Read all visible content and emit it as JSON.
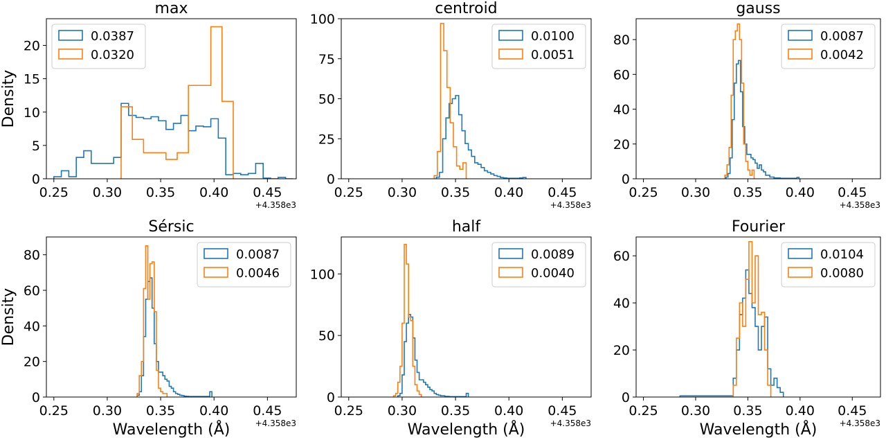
{
  "figure": {
    "colors": {
      "series1": "#1f77b4",
      "series2": "#ff7f0e",
      "axis": "#000000",
      "background": "#ffffff"
    }
  },
  "chart_data": [
    {
      "type": "histogram-step",
      "title": "max",
      "ylabel": "Density",
      "xlabel": "",
      "offset_label": "+4.358e3",
      "xlim": [
        0.243,
        0.477
      ],
      "ylim": [
        0,
        24
      ],
      "xticks": [
        0.25,
        0.3,
        0.35,
        0.4,
        0.45
      ],
      "xtick_labels": [
        "0.25",
        "0.30",
        "0.35",
        "0.40",
        "0.45"
      ],
      "yticks": [
        0,
        5,
        10,
        15,
        20
      ],
      "ytick_labels": [
        "0",
        "5",
        "10",
        "15",
        "20"
      ],
      "legend_position": "top-left",
      "series": [
        {
          "name": "0.0387",
          "color": "#1f77b4",
          "edges": [
            0.25,
            0.257,
            0.264,
            0.271,
            0.278,
            0.285,
            0.292,
            0.299,
            0.306,
            0.313,
            0.32,
            0.327,
            0.334,
            0.341,
            0.348,
            0.355,
            0.362,
            0.369,
            0.376,
            0.383,
            0.39,
            0.397,
            0.404,
            0.411,
            0.418,
            0.425,
            0.432,
            0.439,
            0.446,
            0.453,
            0.46,
            0.467,
            0.474
          ],
          "values": [
            0.3,
            1.2,
            0.3,
            3.2,
            4.2,
            2.3,
            2.3,
            2.3,
            3.2,
            11.3,
            9.5,
            9.2,
            9.0,
            9.3,
            8.7,
            7.4,
            8.3,
            9.5,
            7.2,
            7.9,
            7.8,
            9.0,
            6.1,
            0.6,
            0.8,
            0.6,
            0.8,
            2.3,
            0.1,
            0.0,
            0.2,
            0.0
          ]
        },
        {
          "name": "0.0320",
          "color": "#ff7f0e",
          "edges": [
            0.313,
            0.3235,
            0.334,
            0.3445,
            0.355,
            0.3655,
            0.376,
            0.3865,
            0.397,
            0.4075,
            0.418
          ],
          "values": [
            10.8,
            5.9,
            3.9,
            3.9,
            2.9,
            3.9,
            14.0,
            14.0,
            22.8,
            11.6
          ]
        }
      ]
    },
    {
      "type": "histogram-step",
      "title": "centroid",
      "ylabel": "",
      "xlabel": "",
      "offset_label": "+4.358e3",
      "xlim": [
        0.243,
        0.477
      ],
      "ylim": [
        0,
        100
      ],
      "xticks": [
        0.25,
        0.3,
        0.35,
        0.4,
        0.45
      ],
      "xtick_labels": [
        "0.25",
        "0.30",
        "0.35",
        "0.40",
        "0.45"
      ],
      "yticks": [
        0,
        25,
        50,
        75,
        100
      ],
      "ytick_labels": [
        "0",
        "25",
        "50",
        "75",
        "100"
      ],
      "legend_position": "top-right",
      "series": [
        {
          "name": "0.0100",
          "color": "#1f77b4",
          "edges": [
            0.332,
            0.335,
            0.338,
            0.341,
            0.344,
            0.347,
            0.35,
            0.353,
            0.356,
            0.359,
            0.362,
            0.365,
            0.368,
            0.371,
            0.374,
            0.377,
            0.38,
            0.383,
            0.386,
            0.389,
            0.392,
            0.395,
            0.398,
            0.401,
            0.404,
            0.407,
            0.41,
            0.413,
            0.416
          ],
          "values": [
            1,
            4,
            25,
            38,
            47,
            50,
            52,
            40,
            30,
            22,
            18,
            14,
            10,
            9,
            7,
            5,
            4,
            3,
            2,
            1.5,
            0.8,
            0.5,
            0.3,
            0.3,
            0.3,
            0.3,
            0.5,
            0.8
          ]
        },
        {
          "name": "0.0051",
          "color": "#ff7f0e",
          "edges": [
            0.33,
            0.333,
            0.336,
            0.339,
            0.342,
            0.345,
            0.348,
            0.351,
            0.354,
            0.357,
            0.36
          ],
          "values": [
            2,
            17,
            97,
            80,
            57,
            35,
            20,
            8,
            6,
            10
          ]
        }
      ]
    },
    {
      "type": "histogram-step",
      "title": "gauss",
      "ylabel": "",
      "xlabel": "",
      "offset_label": "+4.358e3",
      "xlim": [
        0.243,
        0.477
      ],
      "ylim": [
        0,
        92
      ],
      "xticks": [
        0.25,
        0.3,
        0.35,
        0.4,
        0.45
      ],
      "xtick_labels": [
        "0.25",
        "0.30",
        "0.35",
        "0.40",
        "0.45"
      ],
      "yticks": [
        0,
        20,
        40,
        60,
        80
      ],
      "ytick_labels": [
        "0",
        "20",
        "40",
        "60",
        "80"
      ],
      "legend_position": "top-right",
      "series": [
        {
          "name": "0.0087",
          "color": "#1f77b4",
          "edges": [
            0.329,
            0.331,
            0.333,
            0.335,
            0.337,
            0.339,
            0.341,
            0.343,
            0.345,
            0.347,
            0.349,
            0.351,
            0.353,
            0.355,
            0.357,
            0.359,
            0.361,
            0.363,
            0.365,
            0.367,
            0.369,
            0.371,
            0.373,
            0.375,
            0.377,
            0.379,
            0.381,
            0.383,
            0.385,
            0.387,
            0.389,
            0.391,
            0.393,
            0.395,
            0.397,
            0.399
          ],
          "values": [
            1,
            3,
            12,
            34,
            55,
            66,
            68,
            50,
            30,
            20,
            14,
            14,
            12,
            11,
            9,
            6,
            8,
            5,
            4,
            2,
            2,
            1,
            1,
            0.5,
            0.5,
            0.5,
            0.3,
            0.3,
            0.3,
            0.3,
            0.3,
            0.3,
            0.3,
            0.3,
            0.8
          ]
        },
        {
          "name": "0.0042",
          "color": "#ff7f0e",
          "edges": [
            0.328,
            0.33,
            0.332,
            0.334,
            0.336,
            0.338,
            0.34,
            0.342,
            0.344,
            0.346,
            0.348,
            0.35,
            0.352,
            0.354,
            0.356
          ],
          "values": [
            2,
            8,
            18,
            48,
            80,
            85,
            89,
            80,
            55,
            20,
            10,
            5,
            2,
            5
          ]
        }
      ]
    },
    {
      "type": "histogram-step",
      "title": "Sérsic",
      "ylabel": "Density",
      "xlabel": "Wavelength (Å)",
      "offset_label": "+4.358e3",
      "xlim": [
        0.243,
        0.477
      ],
      "ylim": [
        0,
        90
      ],
      "xticks": [
        0.25,
        0.3,
        0.35,
        0.4,
        0.45
      ],
      "xtick_labels": [
        "0.25",
        "0.30",
        "0.35",
        "0.40",
        "0.45"
      ],
      "yticks": [
        0,
        20,
        40,
        60,
        80
      ],
      "ytick_labels": [
        "0",
        "20",
        "40",
        "60",
        "80"
      ],
      "legend_position": "top-right",
      "series": [
        {
          "name": "0.0087",
          "color": "#1f77b4",
          "edges": [
            0.328,
            0.33,
            0.332,
            0.334,
            0.336,
            0.338,
            0.34,
            0.342,
            0.344,
            0.346,
            0.348,
            0.35,
            0.352,
            0.354,
            0.356,
            0.358,
            0.36,
            0.362,
            0.364,
            0.366,
            0.368,
            0.37,
            0.372,
            0.374,
            0.376,
            0.378,
            0.38,
            0.382,
            0.384,
            0.386,
            0.388,
            0.39,
            0.392,
            0.394,
            0.396,
            0.398
          ],
          "values": [
            1,
            3,
            12,
            34,
            55,
            65,
            67,
            50,
            30,
            20,
            14,
            14,
            12,
            10,
            9,
            6,
            5,
            3,
            2,
            1.5,
            1,
            0.8,
            0.5,
            0.4,
            0.3,
            0.3,
            0.3,
            0.3,
            0.3,
            0.3,
            0.3,
            0.3,
            0.3,
            0.3,
            3
          ]
        },
        {
          "name": "0.0046",
          "color": "#ff7f0e",
          "edges": [
            0.328,
            0.33,
            0.332,
            0.334,
            0.336,
            0.338,
            0.34,
            0.342,
            0.344,
            0.346,
            0.348,
            0.35,
            0.352,
            0.354,
            0.356
          ],
          "values": [
            2,
            12,
            20,
            61,
            85,
            55,
            75,
            76,
            48,
            15,
            5,
            3,
            2,
            2
          ]
        }
      ]
    },
    {
      "type": "histogram-step",
      "title": "half",
      "ylabel": "",
      "xlabel": "Wavelength (Å)",
      "offset_label": "+4.358e3",
      "xlim": [
        0.243,
        0.477
      ],
      "ylim": [
        0,
        130
      ],
      "xticks": [
        0.25,
        0.3,
        0.35,
        0.4,
        0.45
      ],
      "xtick_labels": [
        "0.25",
        "0.30",
        "0.35",
        "0.40",
        "0.45"
      ],
      "yticks": [
        0,
        50,
        100
      ],
      "ytick_labels": [
        "0",
        "50",
        "100"
      ],
      "legend_position": "top-right",
      "series": [
        {
          "name": "0.0089",
          "color": "#1f77b4",
          "edges": [
            0.296,
            0.298,
            0.3,
            0.302,
            0.304,
            0.306,
            0.308,
            0.31,
            0.312,
            0.314,
            0.316,
            0.318,
            0.32,
            0.322,
            0.324,
            0.326,
            0.328,
            0.33,
            0.332,
            0.334,
            0.336,
            0.338,
            0.34,
            0.342,
            0.344,
            0.346,
            0.348,
            0.35,
            0.352,
            0.354,
            0.356,
            0.358,
            0.36,
            0.362
          ],
          "values": [
            1,
            3,
            18,
            45,
            60,
            67,
            65,
            48,
            30,
            20,
            14,
            14,
            12,
            10,
            8,
            6,
            5,
            3,
            2,
            1.5,
            1,
            1,
            0.5,
            0.5,
            0.3,
            0.3,
            0.3,
            0.3,
            0.3,
            0.3,
            0.3,
            0.3,
            3
          ]
        },
        {
          "name": "0.0040",
          "color": "#ff7f0e",
          "edges": [
            0.292,
            0.294,
            0.296,
            0.298,
            0.3,
            0.302,
            0.304,
            0.306,
            0.308,
            0.31,
            0.312,
            0.314,
            0.316,
            0.318
          ],
          "values": [
            1,
            3,
            12,
            25,
            60,
            124,
            108,
            65,
            62,
            25,
            10,
            5,
            2
          ]
        }
      ]
    },
    {
      "type": "histogram-step",
      "title": "Fourier",
      "ylabel": "",
      "xlabel": "Wavelength (Å)",
      "offset_label": "+4.358e3",
      "xlim": [
        0.243,
        0.477
      ],
      "ylim": [
        0,
        68
      ],
      "xticks": [
        0.25,
        0.3,
        0.35,
        0.4,
        0.45
      ],
      "xtick_labels": [
        "0.25",
        "0.30",
        "0.35",
        "0.40",
        "0.45"
      ],
      "yticks": [
        0,
        20,
        40,
        60
      ],
      "ytick_labels": [
        "0",
        "20",
        "40",
        "60"
      ],
      "legend_position": "top-right",
      "series": [
        {
          "name": "0.0104",
          "color": "#1f77b4",
          "edges": [
            0.285,
            0.288,
            0.291,
            0.294,
            0.297,
            0.3,
            0.303,
            0.306,
            0.309,
            0.312,
            0.315,
            0.318,
            0.321,
            0.324,
            0.327,
            0.33,
            0.333,
            0.336,
            0.339,
            0.342,
            0.345,
            0.348,
            0.351,
            0.354,
            0.357,
            0.36,
            0.363,
            0.366,
            0.369,
            0.372,
            0.375,
            0.378,
            0.381,
            0.384
          ],
          "values": [
            0.5,
            0.5,
            0.5,
            0.5,
            0.5,
            0.5,
            0.5,
            0.5,
            0.5,
            0.5,
            0.5,
            0.5,
            0.5,
            0.5,
            0.5,
            0.5,
            0.5,
            8,
            20,
            35,
            42,
            54,
            44,
            38,
            30,
            20,
            30,
            34,
            12,
            5,
            8,
            4,
            2
          ]
        },
        {
          "name": "0.0080",
          "color": "#ff7f0e",
          "edges": [
            0.336,
            0.339,
            0.342,
            0.345,
            0.348,
            0.351,
            0.354,
            0.357,
            0.36,
            0.363,
            0.366,
            0.369,
            0.372
          ],
          "values": [
            5,
            25,
            40,
            30,
            50,
            66,
            40,
            60,
            35,
            36,
            20,
            5
          ]
        }
      ]
    }
  ]
}
